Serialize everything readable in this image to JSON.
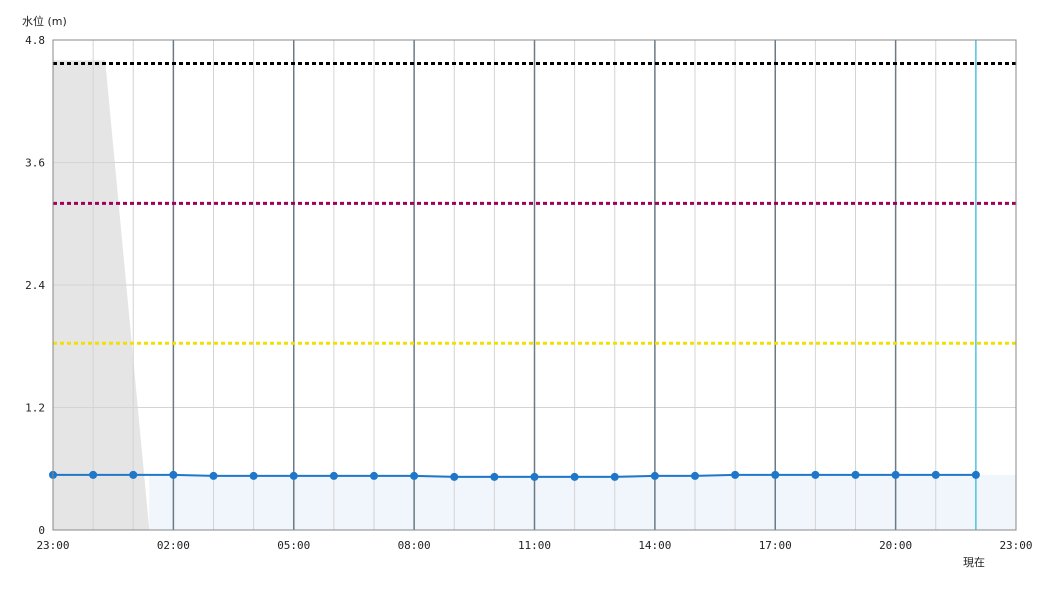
{
  "chart_data": {
    "type": "line",
    "ylabel": "水位 (m)",
    "ylim": [
      0,
      4.8
    ],
    "y_ticks": [
      0,
      1.2,
      2.4,
      3.6,
      4.8
    ],
    "y_tick_labels": [
      "0",
      "1.2",
      "2.4",
      "3.6",
      "4.8"
    ],
    "x_range_hours": [
      0,
      24
    ],
    "x_ticks": [
      0,
      3,
      6,
      9,
      12,
      15,
      18,
      21,
      24
    ],
    "x_tick_labels": [
      "23:00",
      "02:00",
      "05:00",
      "08:00",
      "11:00",
      "14:00",
      "17:00",
      "20:00",
      "23:00"
    ],
    "now_label": "現在",
    "now_x": 23,
    "grid": true,
    "series": [
      {
        "type": "line",
        "color": "#1f77c9",
        "x": [
          0,
          1,
          2,
          3,
          4,
          5,
          6,
          7,
          8,
          9,
          10,
          11,
          12,
          13,
          14,
          15,
          16,
          17,
          18,
          19,
          20,
          21,
          22,
          23
        ],
        "values": [
          0.54,
          0.54,
          0.54,
          0.54,
          0.53,
          0.53,
          0.53,
          0.53,
          0.53,
          0.53,
          0.52,
          0.52,
          0.52,
          0.52,
          0.52,
          0.53,
          0.53,
          0.54,
          0.54,
          0.54,
          0.54,
          0.54,
          0.54,
          0.54
        ]
      }
    ],
    "reference_lines": [
      {
        "value": 4.57,
        "color": "#000000"
      },
      {
        "value": 3.2,
        "color": "#a0005a"
      },
      {
        "value": 1.83,
        "color": "#f2e000"
      }
    ],
    "shaded_region": {
      "color": "#e5e5e5",
      "points": [
        [
          0,
          4.6
        ],
        [
          1.3,
          4.6
        ],
        [
          2.4,
          0
        ]
      ]
    },
    "area_fill": {
      "color": "#f0f6fc",
      "from_x": 2.4,
      "to_x": 24,
      "y": 0.54
    },
    "colors": {
      "grid_minor": "#d4d4d4",
      "grid_major": "#6b7a85",
      "now_line": "#4fc3e0",
      "axis": "#888888"
    }
  }
}
